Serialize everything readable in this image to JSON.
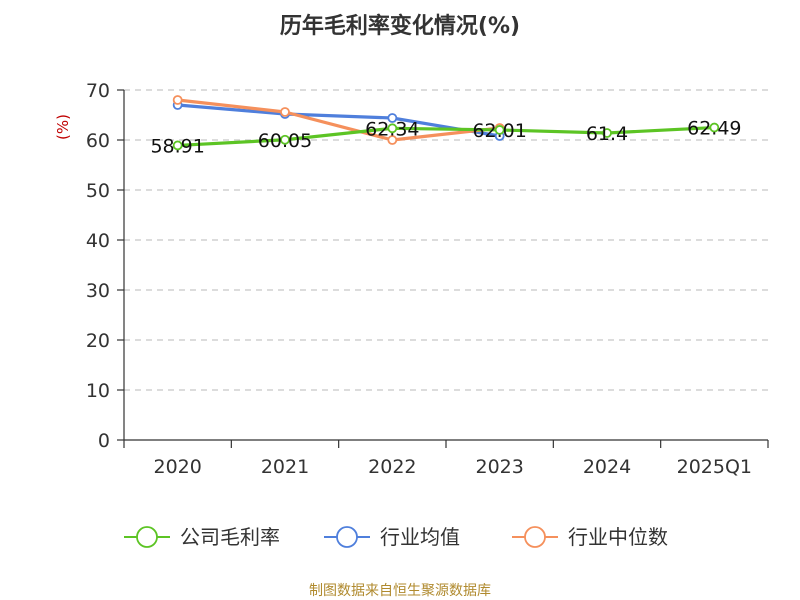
{
  "chart_data": {
    "type": "line",
    "title": "历年毛利率变化情况(%)",
    "ylabel": "(%)",
    "xlabel": "",
    "categories": [
      "2020",
      "2021",
      "2022",
      "2023",
      "2024",
      "2025Q1"
    ],
    "ylim": [
      0,
      70
    ],
    "yticks": [
      0,
      10,
      20,
      30,
      40,
      50,
      60,
      70
    ],
    "grid": true,
    "legend_position": "bottom",
    "series": [
      {
        "name": "公司毛利率",
        "color": "#5cc424",
        "values": [
          58.91,
          60.05,
          62.34,
          62.01,
          61.4,
          62.49
        ],
        "labels": [
          "58.91",
          "60.05",
          "62.34",
          "62.01",
          "61.4",
          "62.49"
        ]
      },
      {
        "name": "行业均值",
        "color": "#4f7fdc",
        "values": [
          67.0,
          65.2,
          64.4,
          60.8,
          null,
          null
        ]
      },
      {
        "name": "行业中位数",
        "color": "#f5905c",
        "values": [
          68.0,
          65.6,
          60.0,
          62.4,
          null,
          null
        ]
      }
    ]
  },
  "source": "制图数据来自恒生聚源数据库"
}
